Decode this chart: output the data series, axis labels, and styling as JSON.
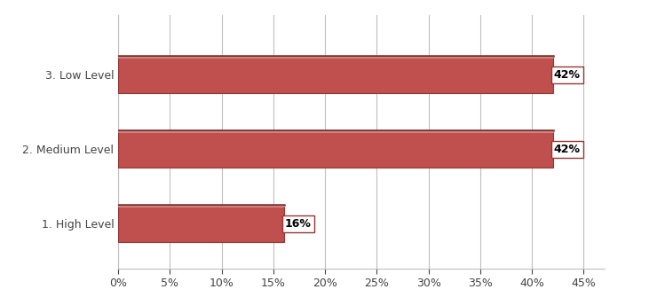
{
  "categories": [
    "1. High Level",
    "2. Medium Level",
    "3. Low Level"
  ],
  "values": [
    16,
    42,
    42
  ],
  "bar_color": "#C0504D",
  "bar_edge_color": "#943634",
  "bar_top_highlight": "#D4918E",
  "bar_top_dark": "#7B2C2A",
  "label_texts": [
    "16%",
    "42%",
    "42%"
  ],
  "xlim": [
    0,
    0.47
  ],
  "xtick_values": [
    0.0,
    0.05,
    0.1,
    0.15,
    0.2,
    0.25,
    0.3,
    0.35,
    0.4,
    0.45
  ],
  "xtick_labels": [
    "0%",
    "5%",
    "10%",
    "15%",
    "20%",
    "25%",
    "30%",
    "35%",
    "40%",
    "45%"
  ],
  "background_color": "#FFFFFF",
  "grid_color": "#BEBEBE",
  "label_fontsize": 9,
  "tick_fontsize": 9,
  "ytick_fontsize": 9,
  "bar_height": 0.5,
  "ylim": [
    -0.6,
    2.8
  ]
}
